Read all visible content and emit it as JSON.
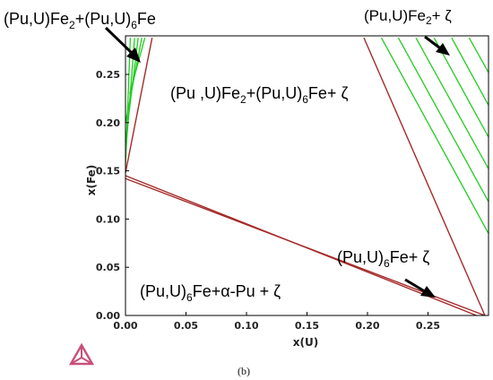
{
  "chart_data": {
    "type": "line",
    "title": "",
    "caption": "(b)",
    "xlabel": "x(U)",
    "ylabel": "x(Fe)",
    "xlim": [
      0,
      0.3
    ],
    "ylim": [
      0,
      0.29
    ],
    "xticks": [
      "0.00",
      "0.05",
      "0.10",
      "0.15",
      "0.20",
      "0.25"
    ],
    "yticks": [
      "0.00",
      "0.05",
      "0.10",
      "0.15",
      "0.20",
      "0.25"
    ],
    "grid": false,
    "colors": {
      "phase_boundary": "#a52a2a",
      "tie_line": "#22cc22",
      "arrow": "#000000",
      "logo": "#c8507a"
    },
    "phase_boundaries": [
      {
        "x": [
          0.0,
          0.29
        ],
        "y": [
          0.145,
          0.0
        ]
      },
      {
        "x": [
          0.0,
          0.297
        ],
        "y": [
          0.142,
          0.0
        ]
      },
      {
        "x": [
          0.0,
          0.022
        ],
        "y": [
          0.148,
          0.288
        ]
      },
      {
        "x": [
          0.197,
          0.297
        ],
        "y": [
          0.288,
          0.0
        ]
      }
    ],
    "tie_lines": [
      {
        "x": [
          0.0,
          0.004
        ],
        "y": [
          0.155,
          0.288
        ]
      },
      {
        "x": [
          0.0,
          0.0075
        ],
        "y": [
          0.165,
          0.288
        ]
      },
      {
        "x": [
          0.0,
          0.0105
        ],
        "y": [
          0.18,
          0.288
        ]
      },
      {
        "x": [
          0.0,
          0.0135
        ],
        "y": [
          0.2,
          0.288
        ]
      },
      {
        "x": [
          0.0035,
          0.016
        ],
        "y": [
          0.23,
          0.288
        ]
      },
      {
        "x": [
          0.2115,
          0.3
        ],
        "y": [
          0.288,
          0.085
        ]
      },
      {
        "x": [
          0.2255,
          0.3
        ],
        "y": [
          0.288,
          0.118
        ]
      },
      {
        "x": [
          0.24,
          0.3
        ],
        "y": [
          0.288,
          0.152
        ]
      },
      {
        "x": [
          0.255,
          0.3
        ],
        "y": [
          0.288,
          0.185
        ]
      },
      {
        "x": [
          0.2695,
          0.3
        ],
        "y": [
          0.288,
          0.218
        ]
      },
      {
        "x": [
          0.284,
          0.3
        ],
        "y": [
          0.288,
          0.252
        ]
      }
    ],
    "annotations": [
      {
        "id": "fe2-6fe",
        "parts": [
          [
            "(Pu,U)Fe",
            ""
          ],
          [
            "2",
            "sub"
          ],
          [
            "+(Pu,U)",
            ""
          ],
          [
            "6",
            "sub"
          ],
          [
            "Fe",
            ""
          ]
        ]
      },
      {
        "id": "fe2-zeta",
        "parts": [
          [
            "(Pu,U)Fe",
            ""
          ],
          [
            "2",
            "sub"
          ],
          [
            "+ ζ",
            ""
          ]
        ]
      },
      {
        "id": "three-phase",
        "parts": [
          [
            "(Pu ,U)Fe",
            ""
          ],
          [
            "2",
            "sub"
          ],
          [
            "+(Pu,U)",
            ""
          ],
          [
            "6",
            "sub"
          ],
          [
            "Fe+ ζ",
            ""
          ]
        ]
      },
      {
        "id": "6fe-zeta",
        "parts": [
          [
            "(Pu,U)",
            ""
          ],
          [
            "6",
            "sub"
          ],
          [
            "Fe+ ζ",
            ""
          ]
        ]
      },
      {
        "id": "alpha-pu",
        "parts": [
          [
            "(Pu,U)",
            ""
          ],
          [
            "6",
            "sub"
          ],
          [
            "Fe+α-Pu + ζ",
            ""
          ]
        ]
      }
    ]
  }
}
